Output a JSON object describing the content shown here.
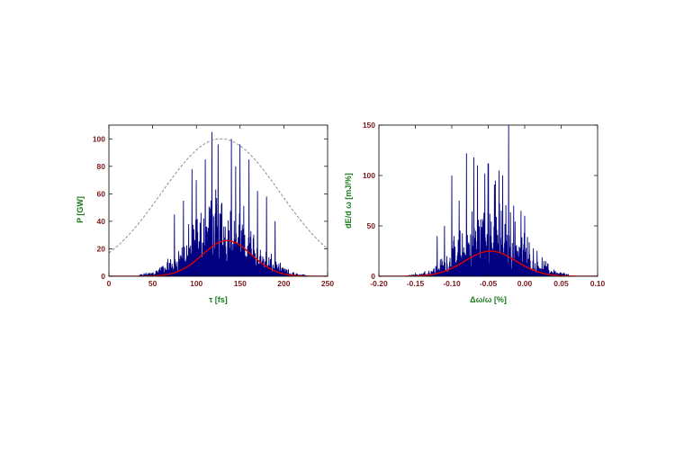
{
  "chart_data": [
    {
      "type": "line",
      "xlabel": "τ  [fs]",
      "ylabel": "P  [GW]",
      "xlim": [
        0,
        250
      ],
      "ylim": [
        0,
        110
      ],
      "xticks": [
        "0",
        "50",
        "100",
        "150",
        "200",
        "250"
      ],
      "xtick_values": [
        0,
        50,
        100,
        150,
        200,
        250
      ],
      "yticks": [
        "0",
        "20",
        "40",
        "60",
        "80",
        "100"
      ],
      "ytick_values": [
        0,
        20,
        40,
        60,
        80,
        100
      ],
      "grid": false,
      "series": [
        {
          "style": "noisy-spikes",
          "color": "#000080",
          "center": 128,
          "sigma": 34,
          "extent": [
            35,
            225
          ],
          "spike_peaks": [
            [
              118,
              105
            ],
            [
              140,
              100
            ],
            [
              150,
              96
            ],
            [
              125,
              96
            ],
            [
              130,
              94
            ],
            [
              160,
              85
            ],
            [
              110,
              85
            ],
            [
              95,
              78
            ],
            [
              145,
              80
            ],
            [
              168,
              60
            ],
            [
              170,
              62
            ],
            [
              100,
              70
            ],
            [
              85,
              55
            ],
            [
              180,
              58
            ],
            [
              75,
              45
            ],
            [
              190,
              40
            ]
          ]
        },
        {
          "style": "solid",
          "color": "#dd0000",
          "shape": "gaussian",
          "center": 135,
          "amplitude": 26,
          "sigma": 28
        },
        {
          "style": "dashed",
          "color": "#808080",
          "shape": "gaussian",
          "center": 128,
          "amplitude": 100,
          "sigma": 68
        }
      ]
    },
    {
      "type": "line",
      "xlabel": "Δω/ω  [%]",
      "ylabel": "dE/d ω  [mJ/%]",
      "xlim": [
        -0.2,
        0.1
      ],
      "ylim": [
        0,
        150
      ],
      "xticks": [
        "-0.20",
        "-0.15",
        "-0.10",
        "-0.05",
        "0.00",
        "0.05",
        "0.10"
      ],
      "xtick_values": [
        -0.2,
        -0.15,
        -0.1,
        -0.05,
        0.0,
        0.05,
        0.1
      ],
      "yticks": [
        "0",
        "50",
        "100",
        "150"
      ],
      "ytick_values": [
        0,
        50,
        100,
        150
      ],
      "grid": false,
      "series": [
        {
          "style": "noisy-spikes",
          "color": "#000080",
          "center": -0.045,
          "sigma": 0.04,
          "extent": [
            -0.16,
            0.06
          ],
          "spike_peaks": [
            [
              -0.022,
              150
            ],
            [
              -0.08,
              122
            ],
            [
              -0.07,
              118
            ],
            [
              -0.05,
              112
            ],
            [
              -0.065,
              110
            ],
            [
              -0.035,
              105
            ],
            [
              -0.03,
              100
            ],
            [
              -0.055,
              102
            ],
            [
              -0.1,
              100
            ],
            [
              -0.09,
              75
            ],
            [
              -0.015,
              70
            ],
            [
              -0.005,
              65
            ],
            [
              0.0,
              60
            ],
            [
              -0.04,
              95
            ],
            [
              -0.11,
              50
            ],
            [
              -0.12,
              40
            ]
          ]
        },
        {
          "style": "solid",
          "color": "#dd0000",
          "shape": "gaussian",
          "center": -0.047,
          "amplitude": 25,
          "sigma": 0.035
        }
      ]
    }
  ]
}
